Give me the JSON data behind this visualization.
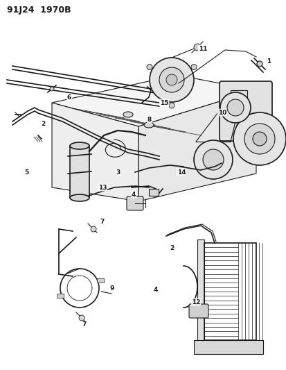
{
  "title": "91J24  1970B",
  "bg_color": "#ffffff",
  "fig_width": 4.14,
  "fig_height": 5.33,
  "dpi": 100,
  "line_color": "#1a1a1a",
  "label_fontsize": 6.5,
  "gray_light": "#cccccc",
  "gray_mid": "#aaaaaa",
  "gray_dark": "#888888"
}
